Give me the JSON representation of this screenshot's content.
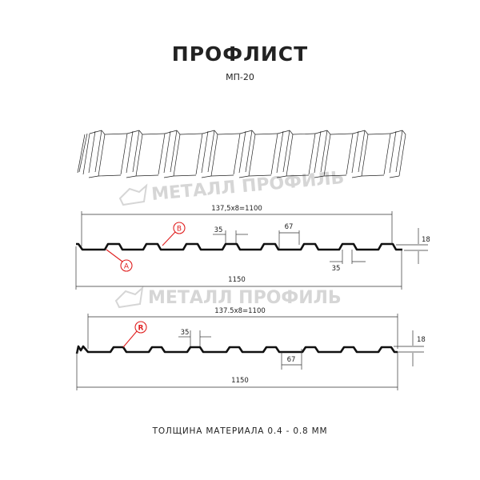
{
  "title": "ПРОФЛИСТ",
  "subtitle": "МП-20",
  "footer": "ТОЛЩИНА МАТЕРИАЛА 0.4 - 0.8 ММ",
  "watermark": "МЕТАЛЛ ПРОФИЛЬ",
  "colors": {
    "profile": "#111111",
    "callout": "#e02020",
    "watermark": "#d6d6d6"
  },
  "drawing1": {
    "pitch_label": "137,5х8=1100",
    "width_label": "1150",
    "rib_top_label": "35",
    "rib_bottom_label": "35",
    "trough_label": "67",
    "height_label": "18",
    "callout_a": "A",
    "callout_b": "B"
  },
  "drawing2": {
    "pitch_label": "137.5x8=1100",
    "width_label": "1150",
    "rib_top_label": "35",
    "trough_label": "67",
    "height_label": "18",
    "callout_r": "R"
  }
}
